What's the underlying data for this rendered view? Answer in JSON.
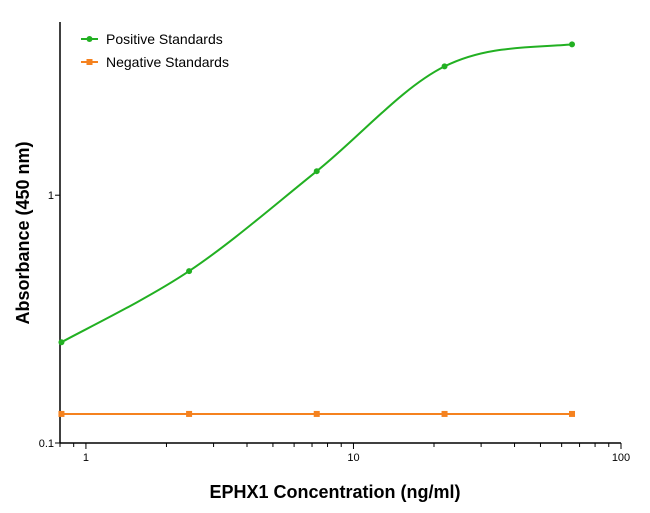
{
  "chart_data": {
    "type": "line",
    "title": "",
    "xlabel": "EPHX1 Concentration (ng/ml)",
    "ylabel": "Absorbance (450 nm)",
    "xscale": "log",
    "yscale": "log",
    "xlim": [
      0.8,
      100
    ],
    "ylim": [
      0.1,
      5
    ],
    "xticks": [
      {
        "value": 1,
        "label": "1"
      },
      {
        "value": 10,
        "label": "10"
      },
      {
        "value": 100,
        "label": "100"
      }
    ],
    "yticks": [
      {
        "value": 0.1,
        "label": "0.1"
      },
      {
        "value": 1,
        "label": "1"
      }
    ],
    "grid": false,
    "legend_position": "top-left",
    "series": [
      {
        "name": "Positive Standards",
        "color": "#22b022",
        "marker": "circle",
        "smooth": true,
        "x": [
          0.81,
          2.43,
          7.29,
          21.9,
          65.6
        ],
        "y": [
          0.255,
          0.494,
          1.25,
          3.31,
          4.06
        ]
      },
      {
        "name": "Negative Standards",
        "color": "#f5821f",
        "marker": "square",
        "smooth": false,
        "x": [
          0.81,
          2.43,
          7.29,
          21.9,
          65.6
        ],
        "y": [
          0.131,
          0.131,
          0.131,
          0.131,
          0.131
        ]
      }
    ]
  }
}
